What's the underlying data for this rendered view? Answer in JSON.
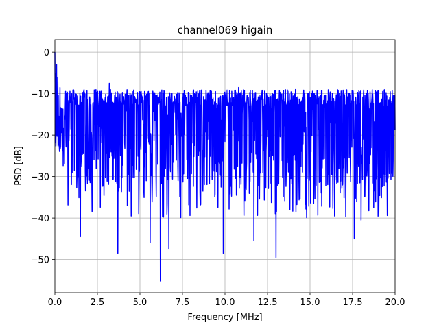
{
  "chart_data": {
    "type": "line",
    "title": "channel069 higain",
    "xlabel": "Frequency [MHz]",
    "ylabel": "PSD [dB]",
    "xlim": [
      0,
      20
    ],
    "ylim": [
      -58,
      3
    ],
    "xticks": [
      0,
      2.5,
      5,
      7.5,
      10,
      12.5,
      15,
      17.5,
      20
    ],
    "xtick_labels": [
      "0.0",
      "2.5",
      "5.0",
      "7.5",
      "10.0",
      "12.5",
      "15.0",
      "17.5",
      "20.0"
    ],
    "yticks": [
      0,
      -10,
      -20,
      -30,
      -40,
      -50
    ],
    "ytick_labels": [
      "0",
      "−10",
      "−20",
      "−30",
      "−40",
      "−50"
    ],
    "grid": true,
    "series": [
      {
        "color": "#0000ff",
        "note_points": "dense noise trace; representative peaks and dips read from the plot",
        "peaks": [
          [
            0.0,
            0
          ],
          [
            0.1,
            -3
          ],
          [
            0.3,
            -8.5
          ],
          [
            3.2,
            -7.5
          ],
          [
            10.8,
            -8.5
          ],
          [
            12.2,
            -10.5
          ],
          [
            19.9,
            -10.5
          ]
        ],
        "dips": [
          [
            1.5,
            -44.5
          ],
          [
            3.7,
            -48.5
          ],
          [
            5.6,
            -46
          ],
          [
            6.2,
            -55.2
          ],
          [
            6.7,
            -47.5
          ],
          [
            9.9,
            -48.5
          ],
          [
            11.7,
            -45.5
          ],
          [
            13.0,
            -49.5
          ],
          [
            17.6,
            -45
          ],
          [
            18.0,
            -40.5
          ]
        ],
        "noise_band": [
          -33,
          -12
        ]
      }
    ]
  }
}
